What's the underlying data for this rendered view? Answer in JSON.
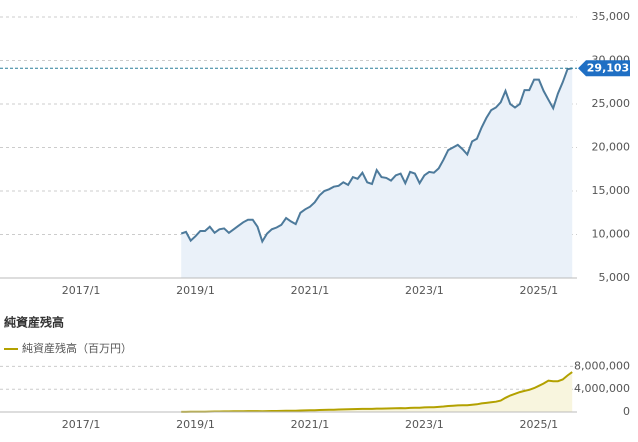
{
  "chart_data": [
    {
      "type": "area",
      "x": [
        "2018/10",
        "2018/11",
        "2018/12",
        "2019/1",
        "2019/2",
        "2019/3",
        "2019/4",
        "2019/5",
        "2019/6",
        "2019/7",
        "2019/8",
        "2019/9",
        "2019/10",
        "2019/11",
        "2019/12",
        "2020/1",
        "2020/2",
        "2020/3",
        "2020/4",
        "2020/5",
        "2020/6",
        "2020/7",
        "2020/8",
        "2020/9",
        "2020/10",
        "2020/11",
        "2020/12",
        "2021/1",
        "2021/2",
        "2021/3",
        "2021/4",
        "2021/5",
        "2021/6",
        "2021/7",
        "2021/8",
        "2021/9",
        "2021/10",
        "2021/11",
        "2021/12",
        "2022/1",
        "2022/2",
        "2022/3",
        "2022/4",
        "2022/5",
        "2022/6",
        "2022/7",
        "2022/8",
        "2022/9",
        "2022/10",
        "2022/11",
        "2022/12",
        "2023/1",
        "2023/2",
        "2023/3",
        "2023/4",
        "2023/5",
        "2023/6",
        "2023/7",
        "2023/8",
        "2023/9",
        "2023/10",
        "2023/11",
        "2023/12",
        "2024/1",
        "2024/2",
        "2024/3",
        "2024/4",
        "2024/5",
        "2024/6",
        "2024/7",
        "2024/8",
        "2024/9",
        "2024/10",
        "2024/11",
        "2024/12",
        "2025/1",
        "2025/2",
        "2025/3",
        "2025/4",
        "2025/5",
        "2025/6",
        "2025/7",
        "2025/8"
      ],
      "series": [
        {
          "color": "#4d7a9b",
          "fill": "#eaf1f9",
          "values": [
            10100,
            10300,
            9300,
            9800,
            10400,
            10400,
            10900,
            10200,
            10600,
            10700,
            10200,
            10600,
            11000,
            11400,
            11700,
            11700,
            10900,
            9200,
            10100,
            10600,
            10800,
            11100,
            11900,
            11500,
            11200,
            12500,
            12900,
            13200,
            13700,
            14500,
            15000,
            15200,
            15500,
            15600,
            16000,
            15700,
            16600,
            16400,
            17100,
            16000,
            15800,
            17400,
            16600,
            16500,
            16200,
            16800,
            17000,
            15900,
            17200,
            17000,
            15900,
            16800,
            17200,
            17100,
            17600,
            18600,
            19700,
            20000,
            20300,
            19800,
            19200,
            20700,
            21000,
            22300,
            23400,
            24300,
            24600,
            25200,
            26500,
            25000,
            24600,
            25000,
            26600,
            26600,
            27800,
            27800,
            26500,
            25500,
            24500,
            26200,
            27500,
            29000,
            29103
          ]
        }
      ],
      "last_value": {
        "value": 29103,
        "label": "29,103"
      },
      "xlim": [
        "2015/8",
        "2025/9"
      ],
      "xticks": [
        "2017/1",
        "2019/1",
        "2021/1",
        "2023/1",
        "2025/1"
      ],
      "ylim": [
        5000,
        35000
      ],
      "yticks": [
        {
          "value": 5000,
          "label": "5,000"
        },
        {
          "value": 10000,
          "label": "10,000"
        },
        {
          "value": 15000,
          "label": "15,000"
        },
        {
          "value": 20000,
          "label": "20,000"
        },
        {
          "value": 25000,
          "label": "25,000"
        },
        {
          "value": 30000,
          "label": "30,000"
        },
        {
          "value": 35000,
          "label": "35,000"
        }
      ],
      "grid": true
    },
    {
      "type": "area",
      "title": "純資産残高",
      "x": [
        "2018/10",
        "2018/11",
        "2018/12",
        "2019/1",
        "2019/2",
        "2019/3",
        "2019/4",
        "2019/5",
        "2019/6",
        "2019/7",
        "2019/8",
        "2019/9",
        "2019/10",
        "2019/11",
        "2019/12",
        "2020/1",
        "2020/2",
        "2020/3",
        "2020/4",
        "2020/5",
        "2020/6",
        "2020/7",
        "2020/8",
        "2020/9",
        "2020/10",
        "2020/11",
        "2020/12",
        "2021/1",
        "2021/2",
        "2021/3",
        "2021/4",
        "2021/5",
        "2021/6",
        "2021/7",
        "2021/8",
        "2021/9",
        "2021/10",
        "2021/11",
        "2021/12",
        "2022/1",
        "2022/2",
        "2022/3",
        "2022/4",
        "2022/5",
        "2022/6",
        "2022/7",
        "2022/8",
        "2022/9",
        "2022/10",
        "2022/11",
        "2022/12",
        "2023/1",
        "2023/2",
        "2023/3",
        "2023/4",
        "2023/5",
        "2023/6",
        "2023/7",
        "2023/8",
        "2023/9",
        "2023/10",
        "2023/11",
        "2023/12",
        "2024/1",
        "2024/2",
        "2024/3",
        "2024/4",
        "2024/5",
        "2024/6",
        "2024/7",
        "2024/8",
        "2024/9",
        "2024/10",
        "2024/11",
        "2024/12",
        "2025/1",
        "2025/2",
        "2025/3",
        "2025/4",
        "2025/5",
        "2025/6",
        "2025/7",
        "2025/8"
      ],
      "series": [
        {
          "name": "純資産残高（百万円）",
          "color": "#b3a100",
          "fill": "#f8f5de",
          "values": [
            10000,
            20000,
            30000,
            40000,
            50000,
            60000,
            70000,
            80000,
            90000,
            100000,
            110000,
            120000,
            130000,
            140000,
            150000,
            150000,
            150000,
            140000,
            160000,
            170000,
            180000,
            190000,
            210000,
            220000,
            230000,
            260000,
            280000,
            300000,
            320000,
            350000,
            370000,
            390000,
            410000,
            430000,
            460000,
            470000,
            500000,
            520000,
            550000,
            540000,
            550000,
            600000,
            600000,
            620000,
            630000,
            660000,
            680000,
            670000,
            720000,
            740000,
            740000,
            800000,
            830000,
            850000,
            900000,
            970000,
            1050000,
            1100000,
            1150000,
            1170000,
            1170000,
            1280000,
            1350000,
            1500000,
            1600000,
            1700000,
            1800000,
            2000000,
            2500000,
            2900000,
            3200000,
            3500000,
            3700000,
            3900000,
            4200000,
            4600000,
            5000000,
            5500000,
            5400000,
            5400000,
            5700000,
            6400000,
            7000000
          ]
        }
      ],
      "xlim": [
        "2015/8",
        "2025/9"
      ],
      "xticks": [
        "2017/1",
        "2019/1",
        "2021/1",
        "2023/1",
        "2025/1"
      ],
      "ylim": [
        0,
        10000000
      ],
      "yticks": [
        0,
        {
          "value": 4000000,
          "label": "4,000,000"
        },
        {
          "value": 8000000,
          "label": "8,000,000"
        }
      ],
      "grid": true
    }
  ]
}
